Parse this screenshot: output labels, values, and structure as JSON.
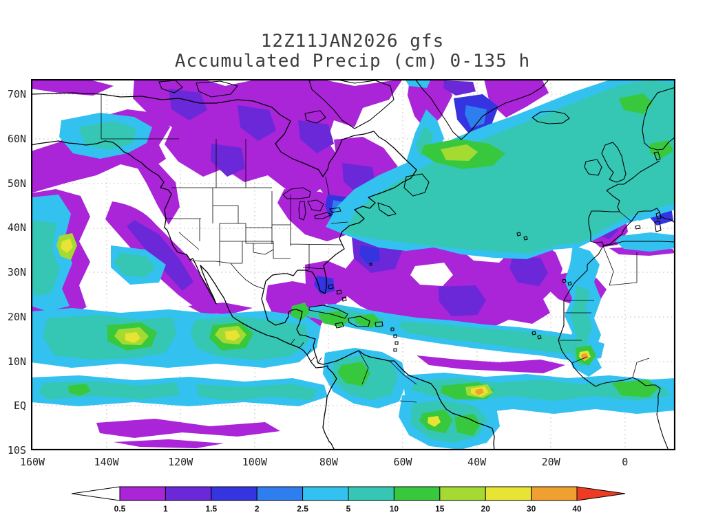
{
  "title": {
    "line1": "12Z11JAN2026 gfs",
    "line2": "Accumulated Precip (cm) 0-135 h"
  },
  "axes": {
    "lat_ticks": [
      "70N",
      "60N",
      "50N",
      "40N",
      "30N",
      "20N",
      "10N",
      "EQ",
      "10S"
    ],
    "lon_ticks": [
      "160W",
      "140W",
      "120W",
      "100W",
      "80W",
      "60W",
      "40W",
      "20W",
      "0"
    ]
  },
  "colorbar": {
    "tick_labels": [
      "0.5",
      "1",
      "1.5",
      "2",
      "2.5",
      "5",
      "10",
      "15",
      "20",
      "30",
      "40"
    ],
    "segment_colors": [
      "#ffffff",
      "#aa24d8",
      "#6a28d8",
      "#3434e0",
      "#2e7ef0",
      "#33c2f0",
      "#35c6b4",
      "#38c83e",
      "#a4da32",
      "#e8e434",
      "#f0a02e",
      "#ee3b23"
    ]
  },
  "chart_data": {
    "type": "heatmap",
    "title": "Accumulated Precip (cm) 0-135 h",
    "model_run": "12Z11JAN2026 gfs",
    "units": "cm",
    "levels": [
      0.5,
      1,
      1.5,
      2,
      2.5,
      5,
      10,
      15,
      20,
      30,
      40
    ],
    "lat_tick_range": [
      "10S",
      "70N"
    ],
    "lon_tick_range": [
      "160W",
      "0"
    ]
  }
}
